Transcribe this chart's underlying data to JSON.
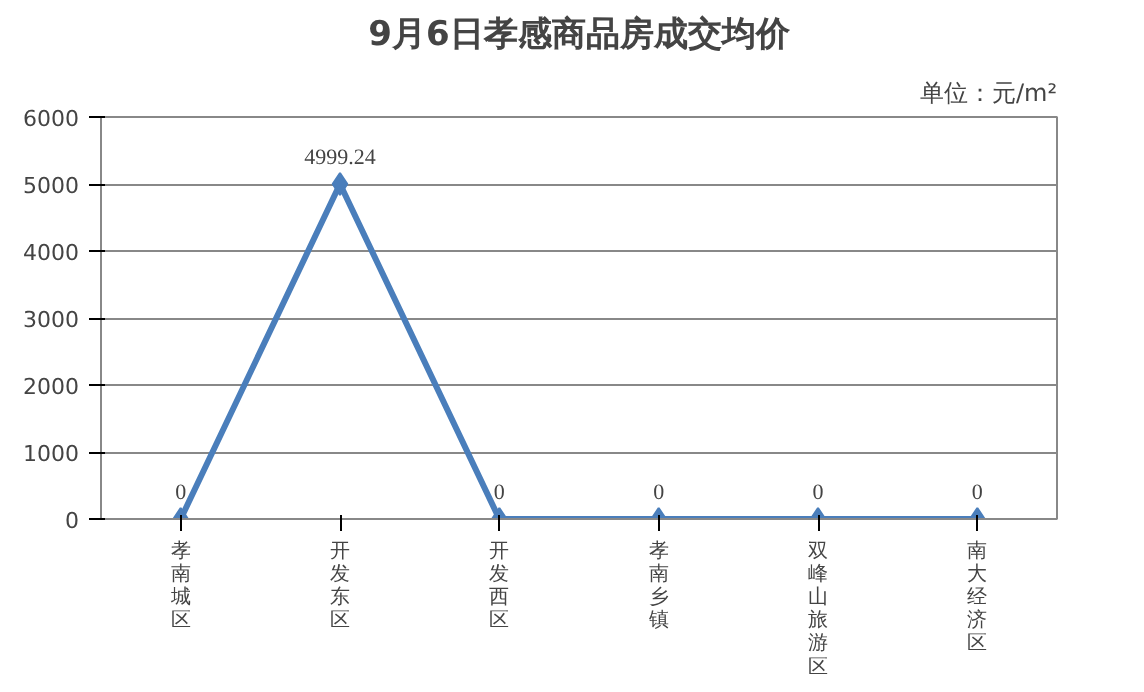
{
  "chart_data": {
    "type": "line",
    "title": "9月6日孝感商品房成交均价",
    "annotations": [
      "单位：元/m²"
    ],
    "categories": [
      "孝南城区",
      "开发东区",
      "开发西区",
      "孝南乡镇",
      "双峰山旅游区",
      "南大经济区"
    ],
    "series": [
      {
        "color": "#4a7ebb",
        "values": [
          0,
          4999.24,
          0,
          0,
          0,
          0
        ]
      }
    ],
    "ylim": [
      0,
      6000
    ],
    "yticks": [
      0,
      1000,
      2000,
      3000,
      4000,
      5000,
      6000
    ],
    "grid": "y",
    "marker": "diamond",
    "line_style": "solid",
    "data_labels": true
  }
}
